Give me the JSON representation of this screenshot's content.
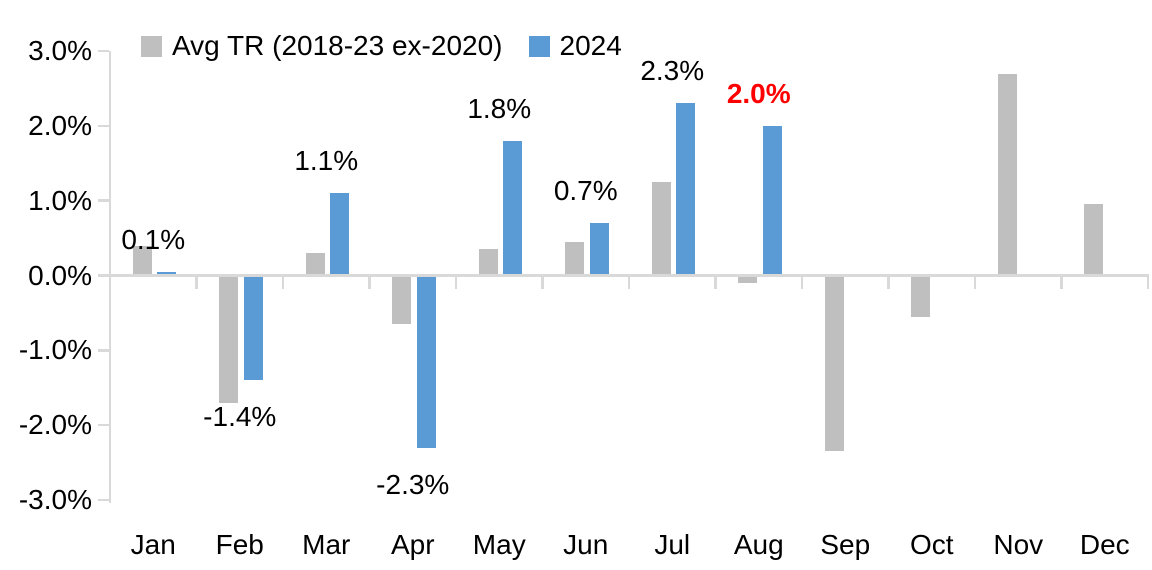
{
  "chart_data": {
    "type": "bar",
    "title": "",
    "xlabel": "",
    "ylabel": "",
    "categories": [
      "Jan",
      "Feb",
      "Mar",
      "Apr",
      "May",
      "Jun",
      "Jul",
      "Aug",
      "Sep",
      "Oct",
      "Nov",
      "Dec"
    ],
    "series": [
      {
        "name": "Avg TR (2018-23 ex-2020)",
        "color": "#BFBFBF",
        "values": [
          0.4,
          -1.7,
          0.3,
          -0.65,
          0.35,
          0.45,
          1.25,
          -0.1,
          -2.35,
          -0.55,
          2.7,
          0.95
        ]
      },
      {
        "name": "2024",
        "color": "#5B9BD5",
        "values": [
          0.05,
          -1.4,
          1.1,
          -2.3,
          1.8,
          0.7,
          2.3,
          2.0,
          null,
          null,
          null,
          null
        ],
        "data_labels": [
          {
            "text": "0.1%",
            "color": "#000000",
            "bold": false
          },
          {
            "text": "-1.4%",
            "color": "#000000",
            "bold": false
          },
          {
            "text": "1.1%",
            "color": "#000000",
            "bold": false
          },
          {
            "text": "-2.3%",
            "color": "#000000",
            "bold": false
          },
          {
            "text": "1.8%",
            "color": "#000000",
            "bold": false
          },
          {
            "text": "0.7%",
            "color": "#000000",
            "bold": false
          },
          {
            "text": "2.3%",
            "color": "#000000",
            "bold": false
          },
          {
            "text": "2.0%",
            "color": "#FF0000",
            "bold": true
          },
          null,
          null,
          null,
          null
        ]
      }
    ],
    "ylim": [
      -3.0,
      3.0
    ],
    "ytick_step": 1.0,
    "ytick_labels": [
      "3.0%",
      "2.0%",
      "1.0%",
      "0.0%",
      "-1.0%",
      "-2.0%",
      "-3.0%"
    ],
    "grid": false,
    "legend_position": "top",
    "axis_color": "#D9D9D9",
    "text_color": "#000000",
    "highlight_color": "#FF0000",
    "background_color": "#FFFFFF"
  }
}
